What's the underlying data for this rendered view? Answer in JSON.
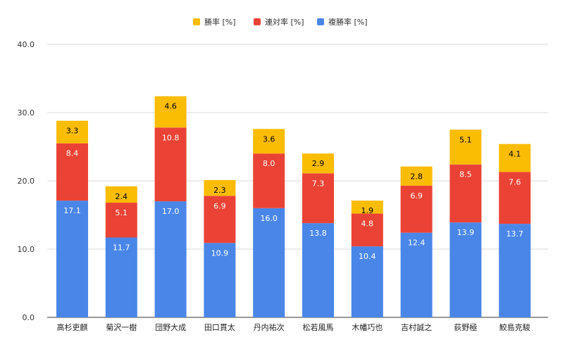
{
  "chart_data": {
    "type": "bar",
    "stacked": true,
    "categories": [
      "高杉吏麒",
      "菊沢一樹",
      "団野大成",
      "田口貫太",
      "丹内祐次",
      "松若風馬",
      "木幡巧也",
      "吉村誠之",
      "荻野極",
      "鮫島克駿"
    ],
    "series": [
      {
        "name": "複勝率 [%]",
        "color": "#4a86e8",
        "label_color": "#ffffff",
        "values": [
          17.1,
          11.7,
          17.0,
          10.9,
          16.0,
          13.8,
          10.4,
          12.4,
          13.9,
          13.7
        ],
        "labels": [
          "17.1",
          "11.7",
          "17.0",
          "10.9",
          "16.0",
          "13.8",
          "10.4",
          "12.4",
          "13.9",
          "13.7"
        ]
      },
      {
        "name": "連対率 [%]",
        "color": "#ea4335",
        "label_color": "#ffffff",
        "values": [
          8.4,
          5.1,
          10.8,
          6.9,
          8.0,
          7.3,
          4.8,
          6.9,
          8.5,
          7.6
        ],
        "labels": [
          "8.4",
          "5.1",
          "10.8",
          "6.9",
          "8.0",
          "7.3",
          "4.8",
          "6.9",
          "8.5",
          "7.6"
        ]
      },
      {
        "name": "勝率 [%]",
        "color": "#fbbc04",
        "label_color": "#000000",
        "values": [
          3.3,
          2.4,
          4.6,
          2.3,
          3.6,
          2.9,
          1.9,
          2.8,
          5.1,
          4.1
        ],
        "labels": [
          "3.3",
          "2.4",
          "4.6",
          "2.3",
          "3.6",
          "2.9",
          "1.9",
          "2.8",
          "5.1",
          "4.1"
        ]
      }
    ],
    "legend_order": [
      "勝率 [%]",
      "連対率 [%]",
      "複勝率 [%]"
    ],
    "legend_position": "top-center",
    "ylim": [
      0,
      40
    ],
    "yticks": [
      "0.0",
      "10.0",
      "20.0",
      "30.0",
      "40.0"
    ],
    "title": "",
    "xlabel": "",
    "ylabel": "",
    "grid": true
  }
}
